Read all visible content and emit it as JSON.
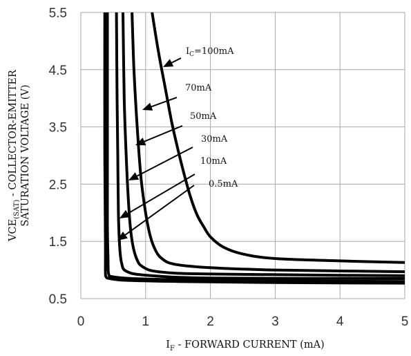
{
  "chart_data": {
    "type": "line",
    "xlabel": {
      "main": "I",
      "sub": "F",
      "rest": " - FORWARD CURRENT (mA)"
    },
    "ylabel": {
      "line1": {
        "main": "VCE",
        "sub": "(SAT)",
        "rest": " - COLLECTOR-EMITTER"
      },
      "line2": "SATURATION VOLTAGE (V)"
    },
    "xlim": [
      0,
      5
    ],
    "ylim": [
      0.5,
      5.5
    ],
    "xticks": [
      0,
      1,
      2,
      3,
      4,
      5
    ],
    "xtick_labels": [
      "0",
      "1",
      "2",
      "3",
      "4",
      "5"
    ],
    "yticks": [
      0.5,
      1.5,
      2.5,
      3.5,
      4.5,
      5.5
    ],
    "ytick_labels": [
      "0.5",
      "1.5",
      "2.5",
      "3.5",
      "4.5",
      "5.5"
    ],
    "grid": true,
    "series": [
      {
        "name": "0.5mA",
        "label": {
          "main": "0.5mA"
        },
        "points": [
          [
            0.37,
            5.5
          ],
          [
            0.37,
            3.0
          ],
          [
            0.38,
            1.5
          ],
          [
            0.38,
            1.0
          ],
          [
            0.39,
            0.88
          ],
          [
            0.45,
            0.85
          ],
          [
            0.7,
            0.82
          ],
          [
            1.5,
            0.8
          ],
          [
            3,
            0.78
          ],
          [
            5,
            0.77
          ]
        ]
      },
      {
        "name": "10mA",
        "label": {
          "main": "10mA"
        },
        "points": [
          [
            0.41,
            5.5
          ],
          [
            0.41,
            3.0
          ],
          [
            0.41,
            1.8
          ],
          [
            0.42,
            1.2
          ],
          [
            0.43,
            0.93
          ],
          [
            0.5,
            0.88
          ],
          [
            0.8,
            0.85
          ],
          [
            1.5,
            0.83
          ],
          [
            3,
            0.81
          ],
          [
            5,
            0.8
          ]
        ]
      },
      {
        "name": "30mA",
        "label": {
          "main": "30mA"
        },
        "points": [
          [
            0.55,
            5.5
          ],
          [
            0.56,
            4.0
          ],
          [
            0.57,
            3.0
          ],
          [
            0.58,
            2.0
          ],
          [
            0.6,
            1.4
          ],
          [
            0.63,
            1.12
          ],
          [
            0.7,
            0.98
          ],
          [
            1.0,
            0.91
          ],
          [
            2.0,
            0.86
          ],
          [
            5,
            0.85
          ]
        ]
      },
      {
        "name": "50mA",
        "label": {
          "main": "50mA"
        },
        "points": [
          [
            0.65,
            5.5
          ],
          [
            0.67,
            4.0
          ],
          [
            0.7,
            3.0
          ],
          [
            0.73,
            2.3
          ],
          [
            0.76,
            1.8
          ],
          [
            0.8,
            1.45
          ],
          [
            0.86,
            1.2
          ],
          [
            0.95,
            1.06
          ],
          [
            1.2,
            0.97
          ],
          [
            2.0,
            0.93
          ],
          [
            5,
            0.9
          ]
        ]
      },
      {
        "name": "70mA",
        "label": {
          "main": "70mA"
        },
        "points": [
          [
            0.79,
            5.5
          ],
          [
            0.82,
            4.5
          ],
          [
            0.87,
            3.5
          ],
          [
            0.93,
            2.6
          ],
          [
            1.0,
            2.0
          ],
          [
            1.07,
            1.6
          ],
          [
            1.15,
            1.35
          ],
          [
            1.25,
            1.2
          ],
          [
            1.45,
            1.1
          ],
          [
            2.0,
            1.04
          ],
          [
            3,
            1.0
          ],
          [
            5,
            0.97
          ]
        ]
      },
      {
        "name": "Ic=100mA",
        "label": {
          "main": "I",
          "sub": "C",
          "rest": "=100mA"
        },
        "points": [
          [
            1.1,
            5.5
          ],
          [
            1.2,
            4.8
          ],
          [
            1.3,
            4.2
          ],
          [
            1.4,
            3.6
          ],
          [
            1.5,
            3.1
          ],
          [
            1.6,
            2.65
          ],
          [
            1.7,
            2.25
          ],
          [
            1.8,
            1.95
          ],
          [
            1.9,
            1.75
          ],
          [
            2.0,
            1.58
          ],
          [
            2.2,
            1.4
          ],
          [
            2.5,
            1.28
          ],
          [
            3.0,
            1.2
          ],
          [
            4.0,
            1.16
          ],
          [
            5,
            1.13
          ]
        ]
      }
    ]
  }
}
